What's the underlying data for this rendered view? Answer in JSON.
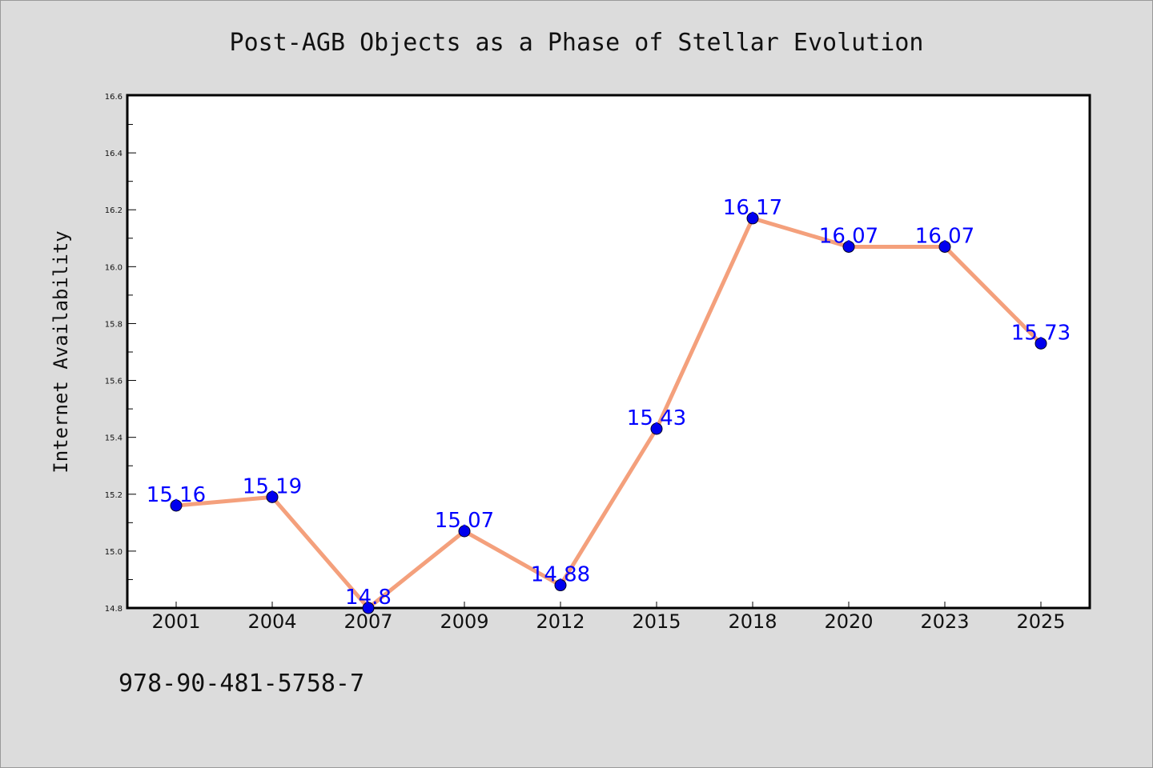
{
  "chart_data": {
    "type": "line",
    "title": "Post-AGB Objects as a Phase of Stellar Evolution",
    "xlabel": "",
    "ylabel": "Internet Availability",
    "categories": [
      "2001",
      "2004",
      "2007",
      "2009",
      "2012",
      "2015",
      "2018",
      "2020",
      "2023",
      "2025"
    ],
    "values": [
      15.16,
      15.19,
      14.8,
      15.07,
      14.88,
      15.43,
      16.17,
      16.07,
      16.07,
      15.73
    ],
    "data_labels": [
      "15.16",
      "15.19",
      "14.8",
      "15.07",
      "14.88",
      "15.43",
      "16.17",
      "16.07",
      "16.07",
      "15.73"
    ],
    "ylim": [
      14.8,
      16.6
    ],
    "yticks": [
      "14.8",
      "15.0",
      "15.2",
      "15.4",
      "15.6",
      "15.8",
      "16.0",
      "16.2",
      "16.4",
      "16.6"
    ],
    "grid": false,
    "line_color": "#f4a07c",
    "marker_color": "#0000ee",
    "label_color": "#0000ff",
    "background_color": "#dcdcdc",
    "plot_background_color": "#ffffff"
  },
  "footer": {
    "isbn": "978-90-481-5758-7"
  }
}
